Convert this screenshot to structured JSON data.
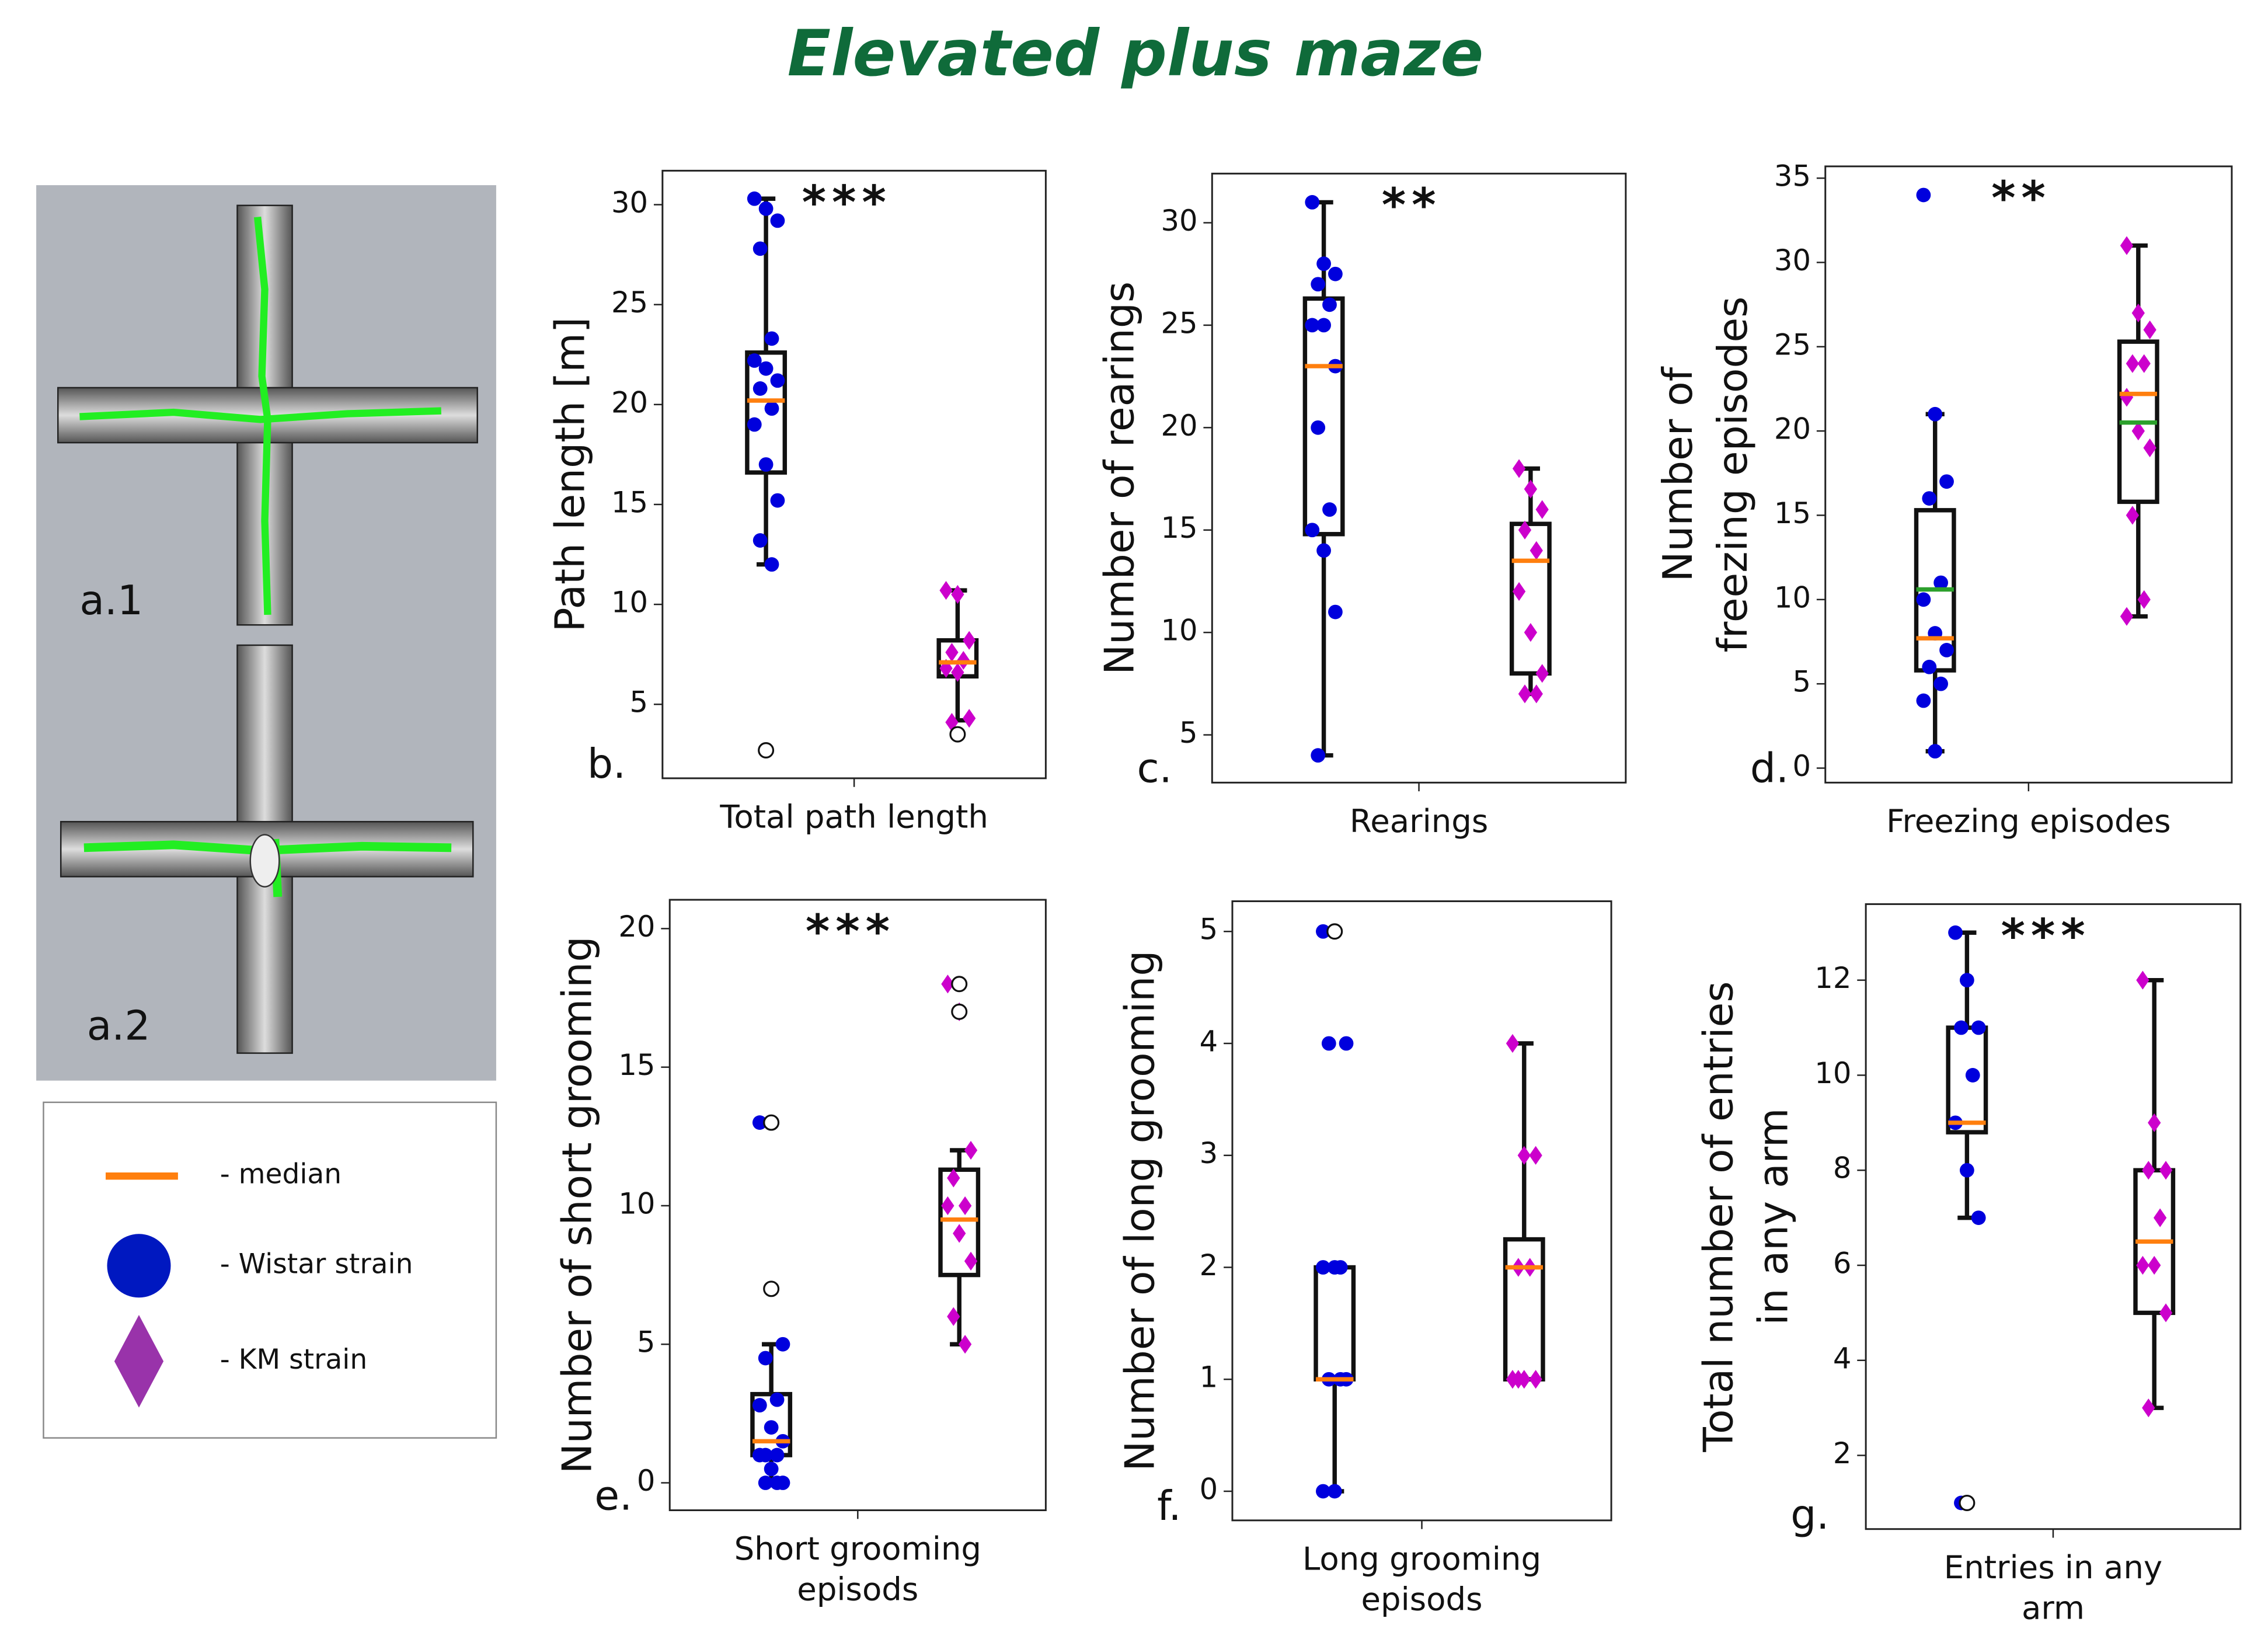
{
  "title": "Elevated plus maze",
  "maze_labels": [
    "a.1",
    "a.2"
  ],
  "legend": {
    "entries": [
      {
        "label": "- median",
        "color": "#ff7f0e",
        "marker": "line"
      },
      {
        "label": "- Wistar strain",
        "color": "#0018c0",
        "marker": "circle"
      },
      {
        "label": "- KM strain",
        "color": "#9933aa",
        "marker": "diamond"
      }
    ]
  },
  "chart_data": [
    {
      "type": "box",
      "panel": "b.",
      "annotation": "***",
      "ylabel": [
        "Path length [m]"
      ],
      "xlabel": [
        "Total path length"
      ],
      "ylim": [
        1.3,
        31.7
      ],
      "yticks": [
        5,
        10,
        15,
        20,
        25,
        30
      ],
      "median_color": "#ff7f0e",
      "groups": [
        {
          "color": "#0000dd",
          "marker": "circle",
          "whisker_low": 12,
          "q1": 16.6,
          "median": 20.2,
          "q3": 22.6,
          "whisker_high": 30.3,
          "points": [
            30.3,
            29.8,
            29.2,
            27.8,
            23.3,
            22.2,
            21.8,
            21.2,
            20.8,
            19.8,
            19,
            17,
            15.2,
            13.2,
            12
          ],
          "outliers": [
            2.7
          ]
        },
        {
          "color": "#cc00cc",
          "marker": "diamond",
          "whisker_low": 4.2,
          "q1": 6.4,
          "median": 7.1,
          "q3": 8.2,
          "whisker_high": 10.7,
          "points": [
            10.7,
            10.5,
            8.2,
            7.6,
            7.2,
            6.8,
            6.6,
            4.3,
            4.1
          ],
          "outliers": [
            3.5
          ]
        }
      ]
    },
    {
      "type": "box",
      "panel": "c.",
      "annotation": "**",
      "ylabel": [
        "Number of rearings"
      ],
      "xlabel": [
        "Rearings"
      ],
      "ylim": [
        2.67,
        32.4
      ],
      "yticks": [
        5,
        10,
        15,
        20,
        25,
        30
      ],
      "median_color": "#ff7f0e",
      "groups": [
        {
          "color": "#0000dd",
          "marker": "circle",
          "whisker_low": 4,
          "q1": 14.8,
          "median": 23,
          "q3": 26.3,
          "whisker_high": 31,
          "points": [
            31,
            28,
            27.5,
            27,
            26,
            25,
            25,
            23,
            20,
            16,
            15,
            14,
            11,
            4
          ]
        },
        {
          "color": "#cc00cc",
          "marker": "diamond",
          "whisker_low": 7,
          "q1": 8,
          "median": 13.5,
          "q3": 15.3,
          "whisker_high": 18,
          "points": [
            18,
            17,
            16,
            15,
            14,
            12,
            10,
            8,
            7,
            7
          ]
        }
      ]
    },
    {
      "type": "box",
      "panel": "d.",
      "annotation": "**",
      "ylabel": [
        "Number of",
        "freezing episodes"
      ],
      "xlabel": [
        "Freezing episodes"
      ],
      "ylim": [
        -0.86,
        35.7
      ],
      "yticks": [
        0,
        5,
        10,
        15,
        20,
        25,
        30,
        35
      ],
      "median_color": "#ff7f0e",
      "mean_color": "#2ca02c",
      "groups": [
        {
          "color": "#0000dd",
          "marker": "circle",
          "whisker_low": 1,
          "q1": 5.8,
          "median": 7.7,
          "mean": 10.6,
          "q3": 15.3,
          "whisker_high": 21,
          "points": [
            34,
            21,
            17,
            16,
            11,
            10,
            8,
            7,
            6,
            5,
            4,
            1
          ]
        },
        {
          "color": "#cc00cc",
          "marker": "diamond",
          "whisker_low": 9,
          "q1": 15.8,
          "median": 22.2,
          "mean": 20.5,
          "q3": 25.3,
          "whisker_high": 31,
          "points": [
            31,
            27,
            26,
            24,
            24,
            22,
            20,
            19,
            15,
            10,
            9
          ]
        }
      ]
    },
    {
      "type": "box",
      "panel": "e.",
      "annotation": "***",
      "ylabel": [
        "Number of short grooming"
      ],
      "xlabel": [
        "Short grooming",
        "episods"
      ],
      "ylim": [
        -0.99,
        21.04
      ],
      "yticks": [
        0,
        5,
        10,
        15,
        20
      ],
      "median_color": "#ff7f0e",
      "groups": [
        {
          "color": "#0000dd",
          "marker": "circle",
          "whisker_low": 0,
          "q1": 1,
          "median": 1.5,
          "q3": 3.2,
          "whisker_high": 5,
          "points": [
            13,
            7,
            5,
            4.5,
            3,
            2.8,
            2,
            1.5,
            1,
            1,
            1,
            0.5,
            0,
            0,
            0
          ],
          "outliers": [
            13,
            7
          ]
        },
        {
          "color": "#cc00cc",
          "marker": "diamond",
          "whisker_low": 5,
          "q1": 7.5,
          "median": 9.5,
          "q3": 11.3,
          "whisker_high": 12,
          "points": [
            18,
            17,
            12,
            11,
            10,
            10,
            9,
            8,
            6,
            5
          ],
          "outliers": [
            18,
            17
          ]
        }
      ]
    },
    {
      "type": "box",
      "panel": "f.",
      "annotation": "",
      "ylabel": [
        "Number of long grooming"
      ],
      "xlabel": [
        "Long grooming",
        "episods"
      ],
      "ylim": [
        -0.26,
        5.27
      ],
      "yticks": [
        0,
        1,
        2,
        3,
        4,
        5
      ],
      "median_color": "#ff7f0e",
      "groups": [
        {
          "color": "#0000dd",
          "marker": "circle",
          "whisker_low": 0,
          "q1": 1,
          "median": 1,
          "q3": 2,
          "whisker_high": 2,
          "points": [
            5,
            5,
            4,
            4,
            2,
            2,
            2,
            1,
            1,
            1,
            0,
            0
          ],
          "outliers": [
            5
          ]
        },
        {
          "color": "#cc00cc",
          "marker": "diamond",
          "whisker_low": 1,
          "q1": 1,
          "median": 2,
          "q3": 2.25,
          "whisker_high": 4,
          "points": [
            4,
            3,
            3,
            2,
            2,
            1,
            1,
            1,
            1
          ]
        }
      ]
    },
    {
      "type": "box",
      "panel": "g.",
      "annotation": "***",
      "ylabel": [
        "Total number of entries",
        "in any arm"
      ],
      "xlabel": [
        "Entries in any",
        "arm"
      ],
      "ylim": [
        0.45,
        13.6
      ],
      "yticks": [
        2,
        4,
        6,
        8,
        10,
        12
      ],
      "median_color": "#ff7f0e",
      "groups": [
        {
          "color": "#0000dd",
          "marker": "circle",
          "whisker_low": 7,
          "q1": 8.8,
          "median": 9,
          "q3": 11,
          "whisker_high": 13,
          "points": [
            13,
            12,
            11,
            11,
            10,
            9,
            8,
            7,
            1
          ],
          "outliers": [
            1
          ]
        },
        {
          "color": "#cc00cc",
          "marker": "diamond",
          "whisker_low": 3,
          "q1": 5,
          "median": 6.5,
          "q3": 8,
          "whisker_high": 12,
          "points": [
            12,
            9,
            8,
            8,
            7,
            6,
            6,
            5,
            3
          ]
        }
      ]
    }
  ]
}
